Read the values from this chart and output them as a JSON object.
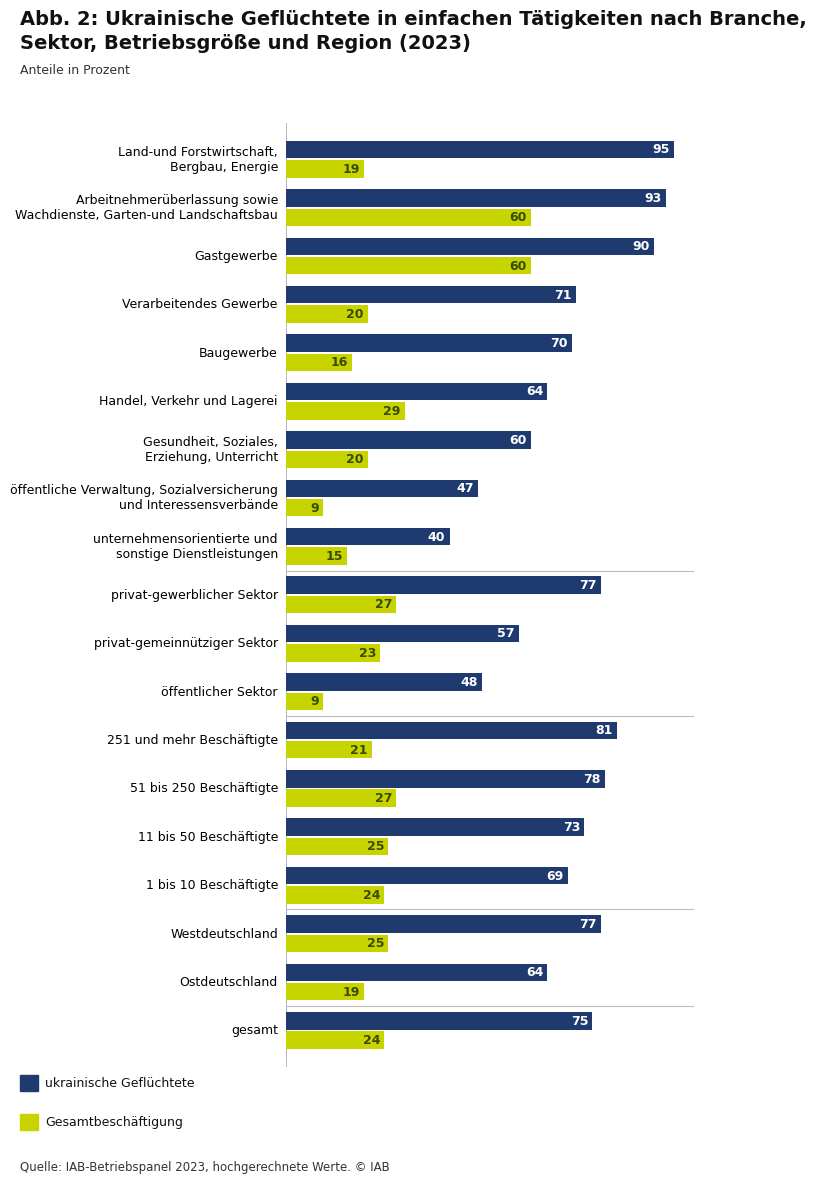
{
  "title_line1": "Abb. 2: Ukrainische Geflüchtete in einfachen Tätigkeiten nach Branche,",
  "title_line2": "Sektor, Betriebsgröße und Region (2023)",
  "subtitle": "Anteile in Prozent",
  "source": "Quelle: IAB-Betriebspanel 2023, hochgerechnete Werte. © IAB",
  "legend_labels": [
    "ukrainische Geflüchtete",
    "Gesamtbeschäftigung"
  ],
  "categories": [
    "gesamt",
    "Ostdeutschland",
    "Westdeutschland",
    "1 bis 10 Beschäftigte",
    "11 bis 50 Beschäftigte",
    "51 bis 250 Beschäftigte",
    "251 und mehr Beschäftigte",
    "öffentlicher Sektor",
    "privat-gemeinnütziger Sektor",
    "privat-gewerblicher Sektor",
    "unternehmensorientierte und\nsonstige Dienstleistungen",
    "öffentliche Verwaltung, Sozialversicherung\nund Interessensverbände",
    "Gesundheit, Soziales,\nErziehung, Unterricht",
    "Handel, Verkehr und Lagerei",
    "Baugewerbe",
    "Verarbeitendes Gewerbe",
    "Gastgewerbe",
    "Arbeitnehmerüberlassung sowie\nWachdienste, Garten-und Landschaftsbau",
    "Land-und Forstwirtschaft,\nBergbau, Energie"
  ],
  "ukrainisch": [
    75,
    64,
    77,
    69,
    73,
    78,
    81,
    48,
    57,
    77,
    40,
    47,
    60,
    64,
    70,
    71,
    90,
    93,
    95
  ],
  "gesamt_vals": [
    24,
    19,
    25,
    24,
    25,
    27,
    21,
    9,
    23,
    27,
    15,
    9,
    20,
    29,
    16,
    20,
    60,
    60,
    19
  ],
  "color_ukr": "#1e3a6e",
  "color_ges": "#c8d400",
  "bar_height": 0.36,
  "bar_gap": 0.04,
  "xlim": [
    0,
    100
  ],
  "background_color": "#ffffff",
  "title_fontsize": 14,
  "subtitle_fontsize": 9,
  "label_fontsize": 9,
  "tick_fontsize": 9,
  "source_fontsize": 8.5,
  "ukr_label_color": "#ffffff",
  "ges_label_color": "#3a4a00"
}
